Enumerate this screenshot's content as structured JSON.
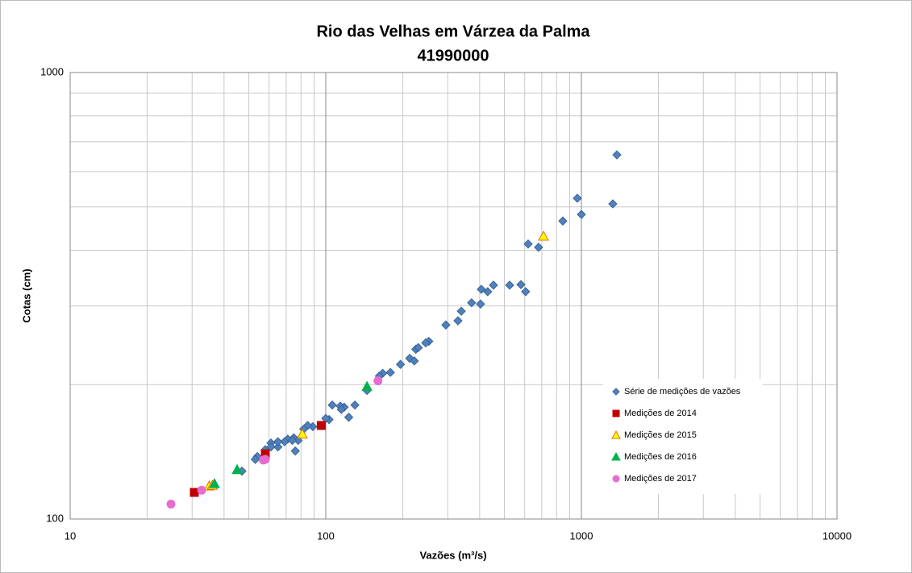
{
  "chart_data": {
    "type": "scatter",
    "title": "Rio das Velhas em Várzea da Palma",
    "subtitle": "41990000",
    "x_label": "Vazões (m³/s)",
    "y_label": "Cotas (cm)",
    "xlog": true,
    "ylog": true,
    "grid": true,
    "legend": "right",
    "xlim": [
      10,
      10000
    ],
    "ylim": [
      100,
      1000
    ],
    "xticks": [
      10,
      100,
      1000,
      10000
    ],
    "yticks": [
      100,
      1000
    ],
    "series": [
      {
        "name": "Série de medições de vazões",
        "color": "#4f81bd",
        "marker": "diamond",
        "x": [
          1377,
          964,
          1327,
          1000,
          846,
          619,
          680,
          453,
          406,
          430,
          524,
          580,
          605,
          372,
          403,
          339,
          329,
          295,
          253,
          246,
          225,
          230,
          213,
          222,
          196,
          179,
          167,
          162,
          145,
          130,
          123,
          118,
          114,
          115,
          106,
          103,
          100,
          89,
          85,
          82,
          75,
          76,
          71,
          69,
          65,
          61,
          58,
          54,
          53,
          47,
          78,
          74,
          61,
          65
        ],
        "values": [
          654,
          523,
          508,
          481,
          465,
          413,
          406,
          334,
          327,
          323,
          334,
          335,
          323,
          305,
          303,
          292,
          278,
          272,
          250,
          248,
          240,
          242,
          229,
          226,
          222,
          213,
          212,
          209,
          194,
          180,
          169,
          178,
          179,
          176,
          180,
          167,
          168,
          161,
          162,
          159,
          152,
          142,
          151,
          149,
          145,
          148,
          143,
          138,
          136,
          128,
          150,
          150,
          145,
          149
        ]
      },
      {
        "name": "Medições de 2014",
        "color": "#c00000",
        "marker": "square",
        "x": [
          30.6,
          58,
          96
        ],
        "values": [
          114.7,
          140,
          162
        ]
      },
      {
        "name": "Medições de 2015",
        "color": "#ffff00",
        "edge": "#e46c0a",
        "marker": "triangle",
        "x": [
          711,
          81,
          35,
          36
        ],
        "values": [
          430,
          155,
          118.6,
          119
        ]
      },
      {
        "name": "Medições de 2016",
        "color": "#00b050",
        "marker": "triangle",
        "x": [
          145,
          45,
          36.7
        ],
        "values": [
          198,
          129,
          120
        ]
      },
      {
        "name": "Medições de 2017",
        "color": "#e66ccf",
        "marker": "circle",
        "x": [
          24.8,
          32.7,
          57,
          58,
          160
        ],
        "values": [
          108,
          116,
          135.5,
          136,
          204
        ]
      }
    ]
  }
}
